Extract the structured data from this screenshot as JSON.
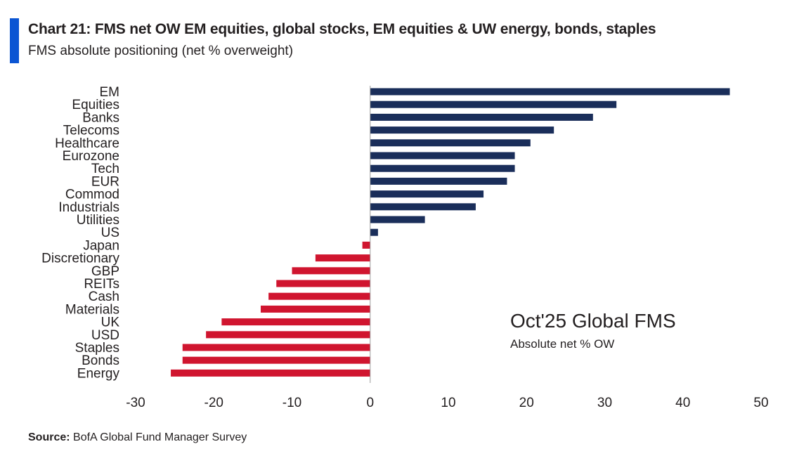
{
  "header": {
    "title": "Chart 21: FMS net OW EM equities, global stocks, EM equities & UW energy, bonds, staples",
    "subtitle": "FMS absolute positioning (net % overweight)"
  },
  "footer": {
    "source_label": "Source:",
    "source_text": "BofA Global Fund Manager Survey"
  },
  "colors": {
    "accent": "#0b55d3",
    "positive": "#1a2e5a",
    "negative": "#d0152f",
    "axis": "#9a9a9a"
  },
  "chart_data": {
    "type": "bar",
    "orientation": "horizontal",
    "title": "Chart 21: FMS net OW EM equities, global stocks, EM equities & UW energy, bonds, staples",
    "subtitle": "FMS absolute positioning (net % overweight)",
    "categories": [
      "EM",
      "Equities",
      "Banks",
      "Telecoms",
      "Healthcare",
      "Eurozone",
      "Tech",
      "EUR",
      "Commod",
      "Industrials",
      "Utilities",
      "US",
      "Japan",
      "Discretionary",
      "GBP",
      "REITs",
      "Cash",
      "Materials",
      "UK",
      "USD",
      "Staples",
      "Bonds",
      "Energy"
    ],
    "values": [
      46,
      31.5,
      28.5,
      23.5,
      20.5,
      18.5,
      18.5,
      17.5,
      14.5,
      13.5,
      7,
      1,
      -1,
      -7,
      -10,
      -12,
      -13,
      -14,
      -19,
      -21,
      -24,
      -24,
      -25.5
    ],
    "xlim": [
      -30,
      50
    ],
    "xticks": [
      -30,
      -20,
      -10,
      0,
      10,
      20,
      30,
      40,
      50
    ],
    "xticks_labels": [
      "-30",
      "-20",
      "-10",
      "0",
      "10",
      "20",
      "30",
      "40",
      "50"
    ],
    "grid": false,
    "legend": "none",
    "annotation": {
      "title": "Oct'25 Global FMS",
      "subtitle": "Absolute net % OW"
    }
  }
}
